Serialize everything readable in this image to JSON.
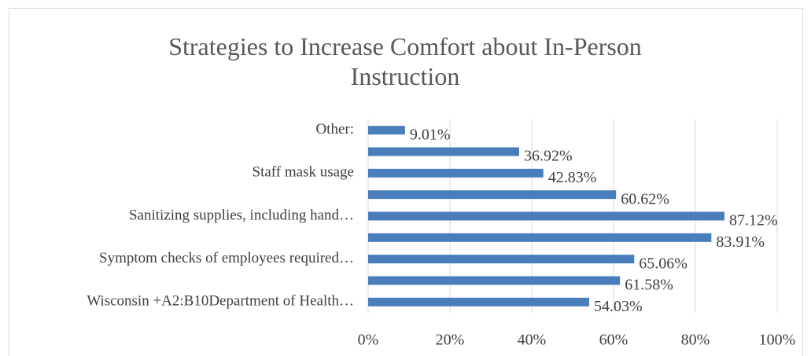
{
  "chart_data": {
    "type": "bar",
    "orientation": "horizontal",
    "title": "Strategies to Increase Comfort about In-Person Instruction",
    "categories": [
      "Other:",
      null,
      "Staff mask usage",
      null,
      "Sanitizing supplies, including hand…",
      null,
      "Symptom checks of employees required…",
      null,
      "Wisconsin +A2:B10Department of Health…"
    ],
    "values": [
      9.01,
      36.92,
      42.83,
      60.62,
      87.12,
      83.91,
      65.06,
      61.58,
      54.03
    ],
    "value_labels": [
      "9.01%",
      "36.92%",
      "42.83%",
      "60.62%",
      "87.12%",
      "83.91%",
      "65.06%",
      "61.58%",
      "54.03%"
    ],
    "color": "#4a7ebb",
    "xlim": [
      0,
      100
    ],
    "xticks": [
      {
        "value": 0,
        "label": "0%"
      },
      {
        "value": 20,
        "label": "20%"
      },
      {
        "value": 40,
        "label": "40%"
      },
      {
        "value": 60,
        "label": "60%"
      },
      {
        "value": 80,
        "label": "80%"
      },
      {
        "value": 100,
        "label": "100%"
      }
    ],
    "grid": true
  }
}
